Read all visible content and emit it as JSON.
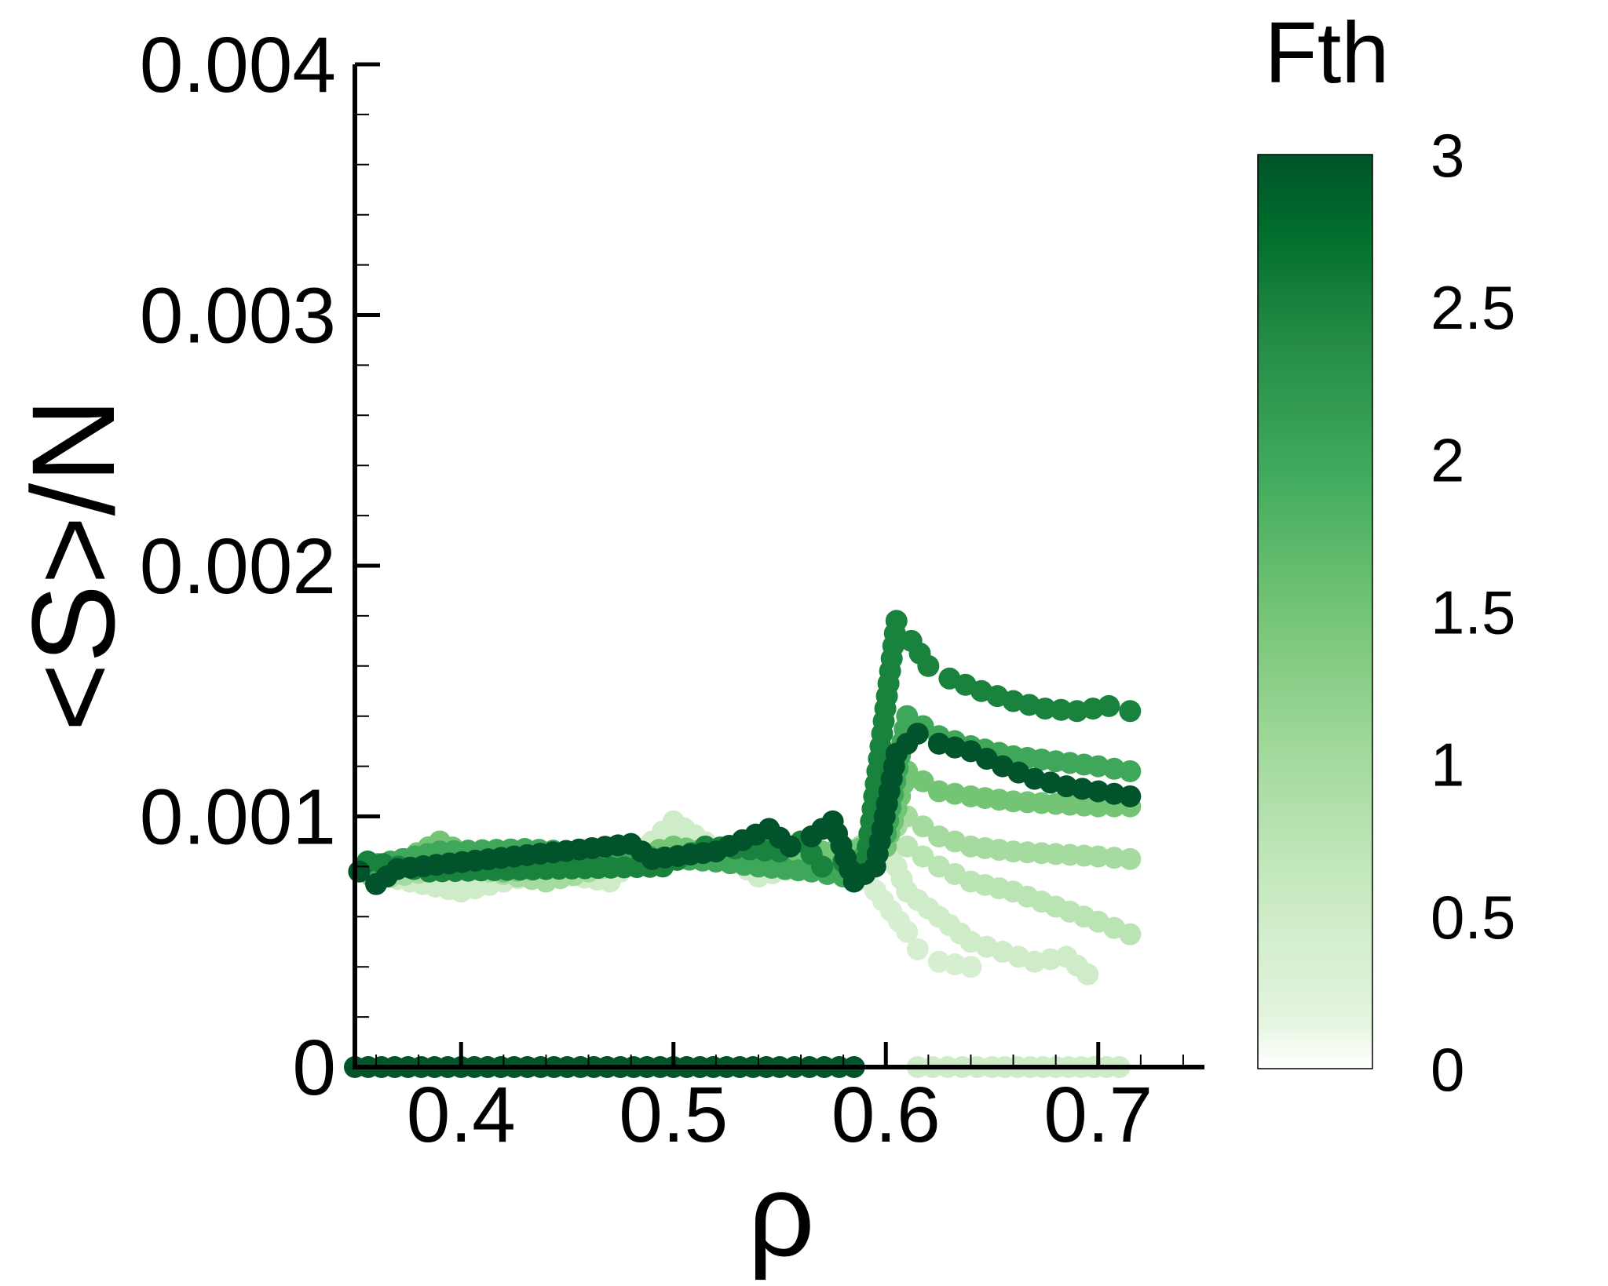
{
  "chart_data": {
    "type": "scatter",
    "xlabel": "ρ",
    "ylabel": "<S>/N",
    "xlim": [
      0.35,
      0.75
    ],
    "ylim": [
      0,
      0.004
    ],
    "x_ticks": [
      0.4,
      0.5,
      0.6,
      0.7
    ],
    "x_tick_labels": [
      "0.4",
      "0.5",
      "0.6",
      "0.7"
    ],
    "y_ticks": [
      0,
      0.001,
      0.002,
      0.003,
      0.004
    ],
    "y_tick_labels": [
      "0",
      "0.001",
      "0.002",
      "0.003",
      "0.004"
    ],
    "colorbar": {
      "title": "Fth",
      "range": [
        0,
        3
      ],
      "ticks": [
        0,
        0.5,
        1,
        1.5,
        2,
        2.5,
        3
      ],
      "tick_labels": [
        "0",
        "0.5",
        "1",
        "1.5",
        "2",
        "2.5",
        "3"
      ],
      "colors": [
        "#ffffff",
        "#d9f0d3",
        "#a6dba0",
        "#74c476",
        "#41ab5d",
        "#238b45",
        "#006d2c",
        "#00532a"
      ]
    },
    "grid": false,
    "series": [
      {
        "fth": 3.0,
        "x": [
          0.352,
          0.36,
          0.37,
          0.48,
          0.49,
          0.52,
          0.545,
          0.555,
          0.565,
          0.575,
          0.585,
          0.595,
          0.605,
          0.615,
          0.625,
          0.64,
          0.655,
          0.67,
          0.685,
          0.7,
          0.715
        ],
        "y": [
          0.00078,
          0.00073,
          0.00079,
          0.00089,
          0.00083,
          0.00086,
          0.00095,
          0.00088,
          0.00092,
          0.00098,
          0.00074,
          0.0008,
          0.00125,
          0.00133,
          0.00129,
          0.00126,
          0.0012,
          0.00115,
          0.00112,
          0.0011,
          0.00108
        ]
      },
      {
        "fth": 2.5,
        "x": [
          0.356,
          0.385,
          0.495,
          0.515,
          0.55,
          0.56,
          0.57,
          0.58,
          0.59,
          0.605,
          0.612,
          0.62,
          0.63,
          0.645,
          0.66,
          0.675,
          0.69,
          0.705,
          0.715
        ],
        "y": [
          0.00082,
          0.00078,
          0.0008,
          0.00088,
          0.00086,
          0.0009,
          0.0008,
          0.00082,
          0.00078,
          0.00178,
          0.0017,
          0.0016,
          0.00155,
          0.0015,
          0.00146,
          0.00143,
          0.00142,
          0.00144,
          0.00142
        ]
      },
      {
        "fth": 2.0,
        "x": [
          0.355,
          0.39,
          0.43,
          0.47,
          0.52,
          0.54,
          0.565,
          0.58,
          0.6,
          0.61,
          0.625,
          0.64,
          0.66,
          0.68,
          0.7,
          0.715
        ],
        "y": [
          0.0008,
          0.00086,
          0.00087,
          0.00085,
          0.00082,
          0.0008,
          0.00078,
          0.00076,
          0.00093,
          0.0014,
          0.00132,
          0.00128,
          0.00124,
          0.00122,
          0.0012,
          0.00118
        ]
      },
      {
        "fth": 1.5,
        "x": [
          0.358,
          0.39,
          0.42,
          0.46,
          0.5,
          0.53,
          0.57,
          0.6,
          0.61,
          0.625,
          0.64,
          0.66,
          0.68,
          0.7,
          0.715
        ],
        "y": [
          0.00076,
          0.0009,
          0.00078,
          0.0008,
          0.00088,
          0.00084,
          0.00086,
          0.00088,
          0.00118,
          0.0011,
          0.00108,
          0.00106,
          0.00105,
          0.00104,
          0.00104
        ]
      },
      {
        "fth": 1.0,
        "x": [
          0.36,
          0.4,
          0.44,
          0.48,
          0.52,
          0.56,
          0.6,
          0.61,
          0.625,
          0.64,
          0.66,
          0.68,
          0.7,
          0.715
        ],
        "y": [
          0.00075,
          0.0008,
          0.00074,
          0.00082,
          0.00085,
          0.00079,
          0.00092,
          0.001,
          0.00092,
          0.00088,
          0.00086,
          0.00085,
          0.00084,
          0.00083
        ]
      },
      {
        "fth": 0.75,
        "x": [
          0.61,
          0.625,
          0.64,
          0.66,
          0.68,
          0.7,
          0.715
        ],
        "y": [
          0.00088,
          0.0008,
          0.00074,
          0.0007,
          0.00064,
          0.00058,
          0.00053
        ]
      },
      {
        "fth": 0.5,
        "x": [
          0.37,
          0.4,
          0.44,
          0.47,
          0.5,
          0.54,
          0.58,
          0.6,
          0.61,
          0.625,
          0.64,
          0.655,
          0.67,
          0.685,
          0.695
        ],
        "y": [
          0.00075,
          0.0007,
          0.00078,
          0.00074,
          0.00098,
          0.00076,
          0.00084,
          0.0009,
          0.0007,
          0.0006,
          0.0005,
          0.00046,
          0.00042,
          0.00044,
          0.00037
        ]
      },
      {
        "fth": 0.25,
        "x": [
          0.38,
          0.42,
          0.46,
          0.5,
          0.54,
          0.58,
          0.61,
          0.615,
          0.625,
          0.64
        ],
        "y": [
          0.0008,
          0.00074,
          0.00082,
          0.0009,
          0.00078,
          0.00087,
          0.00054,
          0.00047,
          0.00042,
          0.0004
        ]
      },
      {
        "fth": 3.0,
        "x": [
          0.35,
          0.4,
          0.45,
          0.5,
          0.55,
          0.585
        ],
        "y": [
          0,
          0,
          0,
          0,
          0,
          0
        ]
      },
      {
        "fth": 0.5,
        "x": [
          0.615,
          0.65,
          0.68,
          0.71
        ],
        "y": [
          0,
          0,
          0,
          0
        ]
      }
    ]
  },
  "colors": {
    "axis": "#000000",
    "marker_light": "#a6dba0",
    "marker_dark": "#00532a"
  }
}
